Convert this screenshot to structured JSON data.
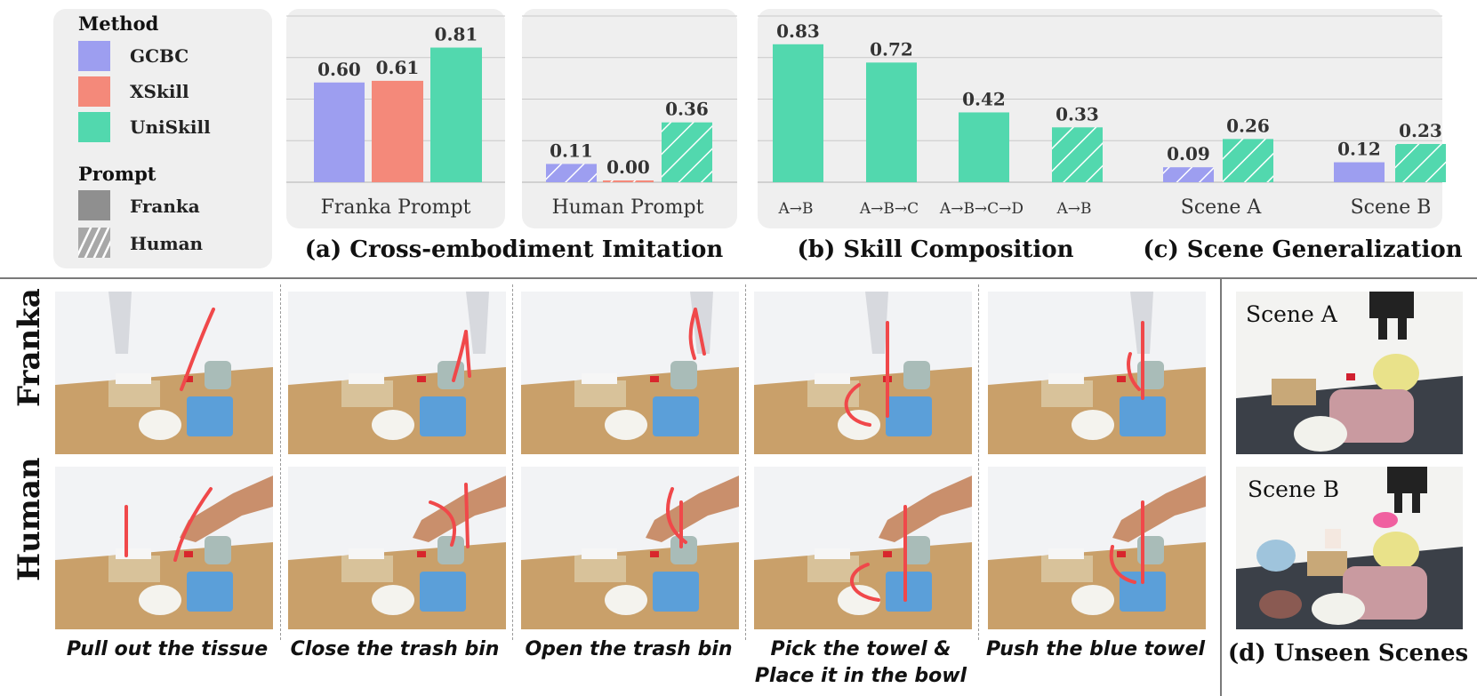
{
  "colors": {
    "gcbc": "#9d9ef0",
    "xskill": "#f4897a",
    "uniskill": "#52d8ae",
    "panel_bg": "#efefef",
    "arrow_red": "#f0484a"
  },
  "legend": {
    "method_title": "Method",
    "methods": [
      {
        "name": "GCBC",
        "color": "#9d9ef0"
      },
      {
        "name": "XSkill",
        "color": "#f4897a"
      },
      {
        "name": "UniSkill",
        "color": "#52d8ae"
      }
    ],
    "prompt_title": "Prompt",
    "prompts": [
      {
        "name": "Franka",
        "pattern": "solid"
      },
      {
        "name": "Human",
        "pattern": "hatched"
      }
    ]
  },
  "chart_data": [
    {
      "type": "bar",
      "title": "(a) Cross-embodiment Imitation",
      "ylim": [
        0,
        1
      ],
      "grid": true,
      "groups": [
        {
          "category": "Franka Prompt",
          "bars": [
            {
              "series": "GCBC",
              "value": 0.6,
              "label": "0.60",
              "prompt": "Franka"
            },
            {
              "series": "XSkill",
              "value": 0.61,
              "label": "0.61",
              "prompt": "Franka"
            },
            {
              "series": "UniSkill",
              "value": 0.81,
              "label": "0.81",
              "prompt": "Franka"
            }
          ]
        },
        {
          "category": "Human Prompt",
          "bars": [
            {
              "series": "GCBC",
              "value": 0.11,
              "label": "0.11",
              "prompt": "Human"
            },
            {
              "series": "XSkill",
              "value": 0.0,
              "label": "0.00",
              "prompt": "Human"
            },
            {
              "series": "UniSkill",
              "value": 0.36,
              "label": "0.36",
              "prompt": "Human"
            }
          ]
        }
      ]
    },
    {
      "type": "bar",
      "title": "(b) Skill Composition",
      "ylim": [
        0,
        1
      ],
      "grid": true,
      "groups": [
        {
          "category": "A→B",
          "bars": [
            {
              "series": "UniSkill",
              "value": 0.83,
              "label": "0.83",
              "prompt": "Franka"
            }
          ]
        },
        {
          "category": "A→B→C",
          "bars": [
            {
              "series": "UniSkill",
              "value": 0.72,
              "label": "0.72",
              "prompt": "Franka"
            }
          ]
        },
        {
          "category": "A→B→C→D",
          "bars": [
            {
              "series": "UniSkill",
              "value": 0.42,
              "label": "0.42",
              "prompt": "Franka"
            }
          ]
        },
        {
          "category": "A→B",
          "bars": [
            {
              "series": "UniSkill",
              "value": 0.33,
              "label": "0.33",
              "prompt": "Human"
            }
          ]
        }
      ]
    },
    {
      "type": "bar",
      "title": "(c) Scene Generalization",
      "ylim": [
        0,
        1
      ],
      "grid": true,
      "groups": [
        {
          "category": "Scene A",
          "bars": [
            {
              "series": "GCBC",
              "value": 0.09,
              "label": "0.09",
              "prompt": "Human"
            },
            {
              "series": "UniSkill",
              "value": 0.26,
              "label": "0.26",
              "prompt": "Human"
            }
          ]
        },
        {
          "category": "Scene B",
          "bars": [
            {
              "series": "GCBC",
              "value": 0.12,
              "label": "0.12",
              "prompt": "Franka"
            },
            {
              "series": "UniSkill",
              "value": 0.23,
              "label": "0.23",
              "prompt": "Human"
            }
          ]
        }
      ]
    }
  ],
  "rows": {
    "franka_label": "Franka",
    "human_label": "Human"
  },
  "tasks": [
    {
      "caption_lines": [
        "Pull out the tissue"
      ]
    },
    {
      "caption_lines": [
        "Close the trash bin"
      ]
    },
    {
      "caption_lines": [
        "Open the trash bin"
      ]
    },
    {
      "caption_lines": [
        "Pick the towel &",
        "Place it in the bowl"
      ]
    },
    {
      "caption_lines": [
        "Push the blue towel"
      ]
    }
  ],
  "scenes": {
    "title": "(d) Unseen Scenes",
    "items": [
      {
        "label": "Scene A"
      },
      {
        "label": "Scene B"
      }
    ]
  }
}
